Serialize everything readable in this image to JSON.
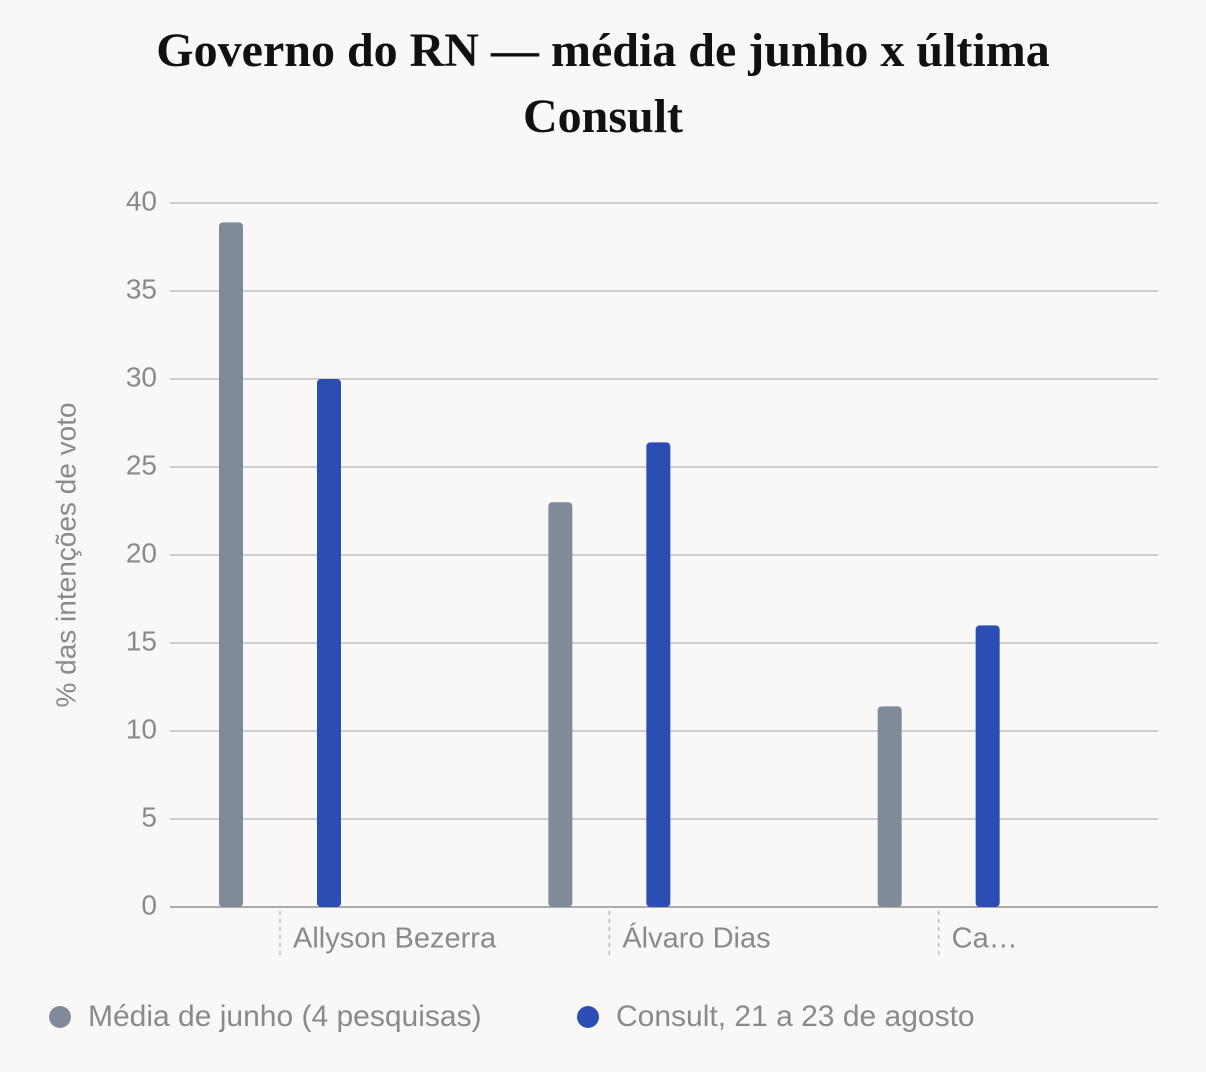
{
  "chart_data": {
    "type": "bar",
    "title": "Governo do RN — média de junho x última Consult",
    "y_label": "% das intenções de voto",
    "categories": [
      "Allyson Bezerra",
      "Álvaro Dias",
      "Ca…"
    ],
    "series": [
      {
        "name": "Média de junho (4 pesquisas)",
        "color": "#7f8b99",
        "values": [
          38.9,
          23.0,
          11.4
        ]
      },
      {
        "name": "Consult, 21 a 23 de agosto",
        "color": "#2c4eb4",
        "values": [
          30.0,
          26.4,
          16.0
        ]
      }
    ],
    "ylim": [
      0,
      40
    ],
    "yticks": [
      0,
      5,
      10,
      15,
      20,
      25,
      30,
      35,
      40
    ],
    "grid": true
  }
}
